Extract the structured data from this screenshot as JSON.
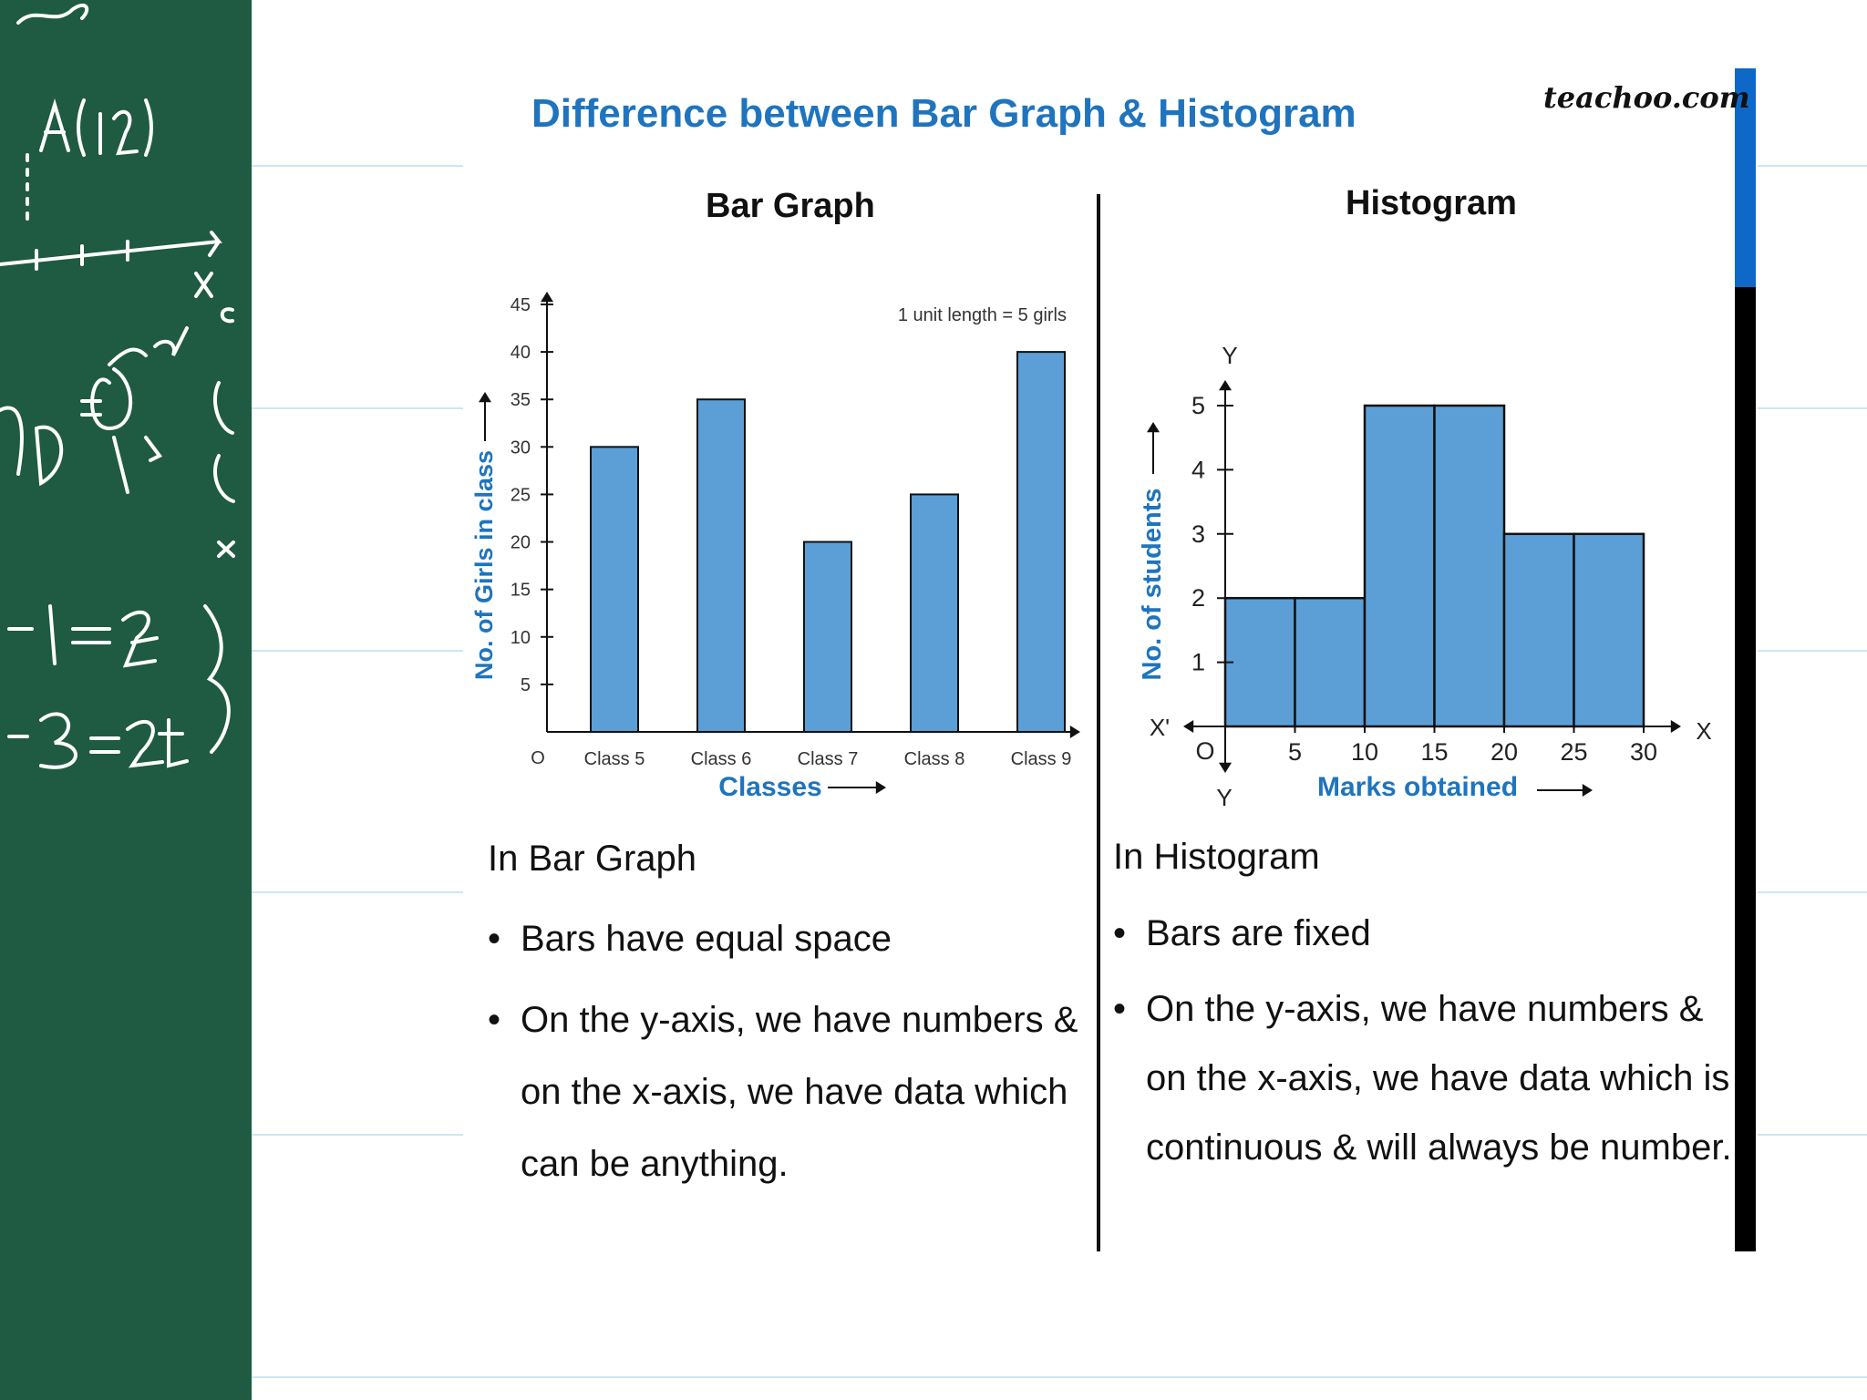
{
  "page": {
    "title": "Difference between Bar Graph & Histogram",
    "brand": "teachoo.com"
  },
  "colors": {
    "board": "#1f5a43",
    "bar_fill": "#5b9fd6",
    "title_blue": "#1f74bd",
    "axis_label_blue": "#1f74bd",
    "scroll_thumb": "#0d68c8"
  },
  "bar_graph": {
    "heading": "Bar Graph",
    "notes_heading": "In Bar Graph",
    "bullets": [
      "Bars have equal space",
      "On the y-axis, we have numbers & on the x-axis, we have data which can be anything."
    ]
  },
  "histogram": {
    "heading": "Histogram",
    "notes_heading": "In Histogram",
    "bullets": [
      "Bars are fixed",
      "On the y-axis, we have numbers & on the x-axis, we have data which is continuous & will always be number."
    ]
  },
  "chart_data": [
    {
      "type": "bar",
      "title": "Bar Graph",
      "categories": [
        "Class 5",
        "Class 6",
        "Class 7",
        "Class 8",
        "Class 9"
      ],
      "values": [
        30,
        35,
        20,
        25,
        40
      ],
      "xlabel": "Classes",
      "ylabel": "No. of Girls in class",
      "ylim": [
        0,
        45
      ],
      "yticks": [
        5,
        10,
        15,
        20,
        25,
        30,
        35,
        40,
        45
      ],
      "origin_label": "O",
      "annotation": "1 unit length = 5 girls",
      "grid": false
    },
    {
      "type": "bar",
      "title": "Histogram",
      "bins": [
        [
          0,
          5
        ],
        [
          5,
          10
        ],
        [
          10,
          15
        ],
        [
          15,
          20
        ],
        [
          20,
          25
        ],
        [
          25,
          30
        ]
      ],
      "values": [
        2,
        2,
        5,
        5,
        3,
        3
      ],
      "xticks": [
        5,
        10,
        15,
        20,
        25,
        30
      ],
      "yticks": [
        1,
        2,
        3,
        4,
        5
      ],
      "xlim": [
        0,
        30
      ],
      "ylim": [
        0,
        5
      ],
      "xlabel": "Marks obtained",
      "ylabel": "No. of students",
      "axis_letters": {
        "x": "X",
        "x_neg": "X'",
        "y": "Y",
        "y_neg": "Y",
        "origin": "O"
      },
      "grid": false
    }
  ]
}
